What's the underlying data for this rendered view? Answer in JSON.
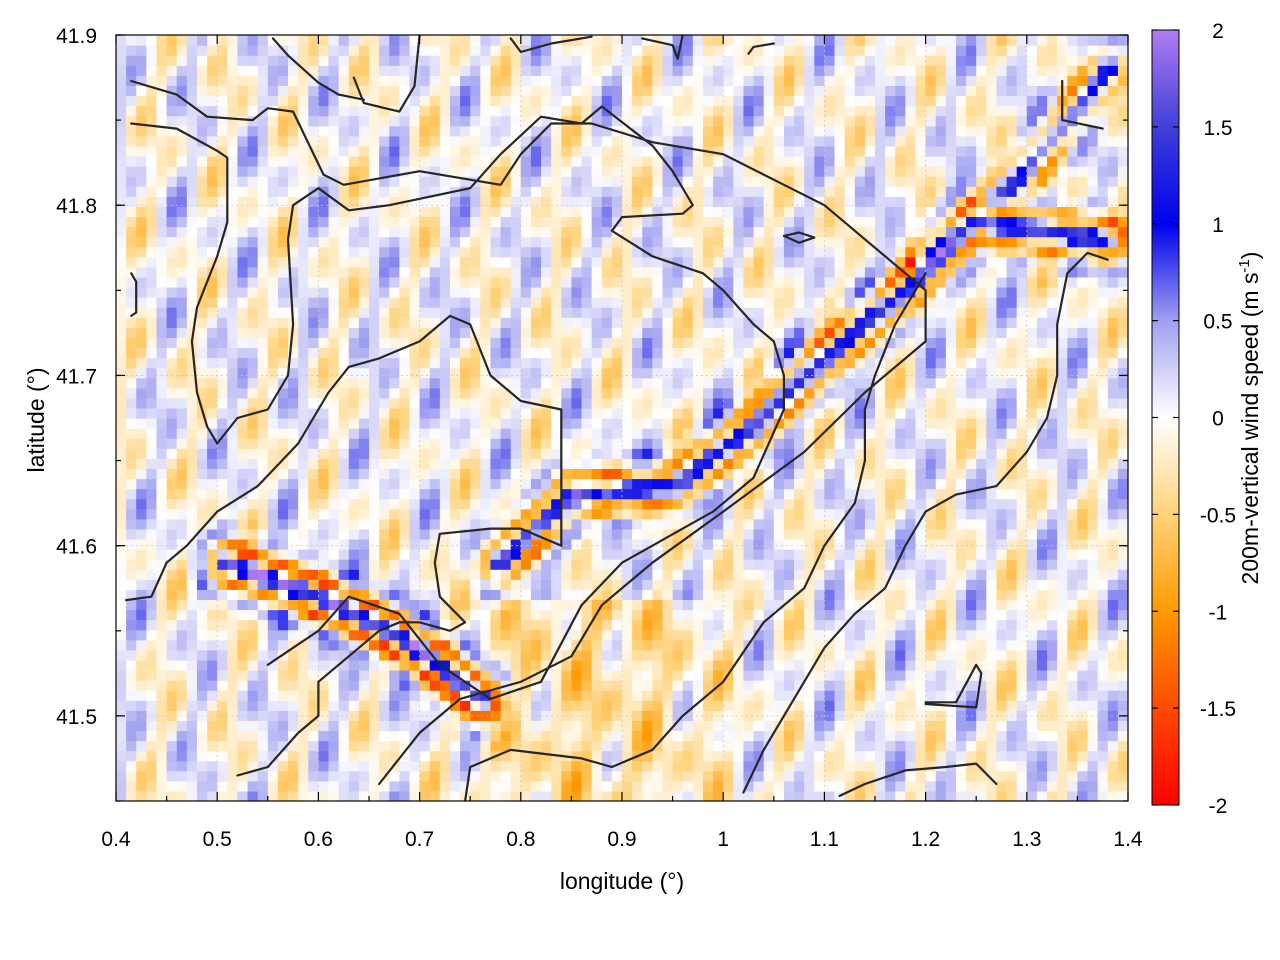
{
  "chart_data": {
    "type": "heatmap",
    "xlabel": "longitude (°)",
    "ylabel": "latitude (°)",
    "colorbar_label": "200m-vertical wind speed (m s-1)",
    "xlim": [
      0.4,
      1.4
    ],
    "ylim": [
      41.45,
      41.9
    ],
    "x_ticks": [
      "0.4",
      "0.5",
      "0.6",
      "0.7",
      "0.8",
      "0.9",
      "1",
      "1.1",
      "1.2",
      "1.3",
      "1.4"
    ],
    "y_ticks": [
      "41.5",
      "41.6",
      "41.7",
      "41.8",
      "41.9"
    ],
    "y_tick_values": [
      41.5,
      41.6,
      41.7,
      41.8,
      41.9
    ],
    "colorbar_ticks": [
      "-2",
      "-1.5",
      "-1",
      "-0.5",
      "0",
      "0.5",
      "1",
      "1.5",
      "2"
    ],
    "colorbar_tick_values": [
      -2,
      -1.5,
      -1,
      -0.5,
      0,
      0.5,
      1,
      1.5,
      2
    ],
    "colorbar_range": [
      -2,
      2
    ],
    "grid": true,
    "colormap": [
      {
        "value": -2.0,
        "color": "#ff0000"
      },
      {
        "value": -1.5,
        "color": "#ff4a00"
      },
      {
        "value": -1.0,
        "color": "#ff9a00"
      },
      {
        "value": -0.5,
        "color": "#ffd27a"
      },
      {
        "value": 0.0,
        "color": "#ffffff"
      },
      {
        "value": 0.5,
        "color": "#9f9ff0"
      },
      {
        "value": 1.0,
        "color": "#0000ee"
      },
      {
        "value": 1.5,
        "color": "#4040d8"
      },
      {
        "value": 2.0,
        "color": "#b07cf2"
      }
    ],
    "wave_bands": [
      {
        "name": "lower-left band",
        "points": [
          [
            0.51,
            41.59
          ],
          [
            0.6,
            41.57
          ],
          [
            0.67,
            41.55
          ],
          [
            0.72,
            41.53
          ],
          [
            0.76,
            41.51
          ]
        ],
        "amplitude": 1.9
      },
      {
        "name": "central band",
        "points": [
          [
            0.78,
            41.59
          ],
          [
            0.85,
            41.63
          ],
          [
            0.95,
            41.635
          ],
          [
            1.03,
            41.67
          ],
          [
            1.1,
            41.71
          ],
          [
            1.18,
            41.75
          ],
          [
            1.25,
            41.79
          ],
          [
            1.38,
            41.78
          ]
        ],
        "amplitude": 1.4
      },
      {
        "name": "upper-right band",
        "points": [
          [
            1.2,
            41.77
          ],
          [
            1.3,
            41.82
          ],
          [
            1.38,
            41.88
          ]
        ],
        "amplitude": 0.9
      }
    ],
    "contours": [
      [
        [
          0.415,
          41.873
        ],
        [
          0.46,
          41.865
        ],
        [
          0.49,
          41.852
        ],
        [
          0.535,
          41.85
        ],
        [
          0.55,
          41.857
        ],
        [
          0.575,
          41.855
        ],
        [
          0.605,
          41.818
        ],
        [
          0.625,
          41.812
        ],
        [
          0.7,
          41.82
        ],
        [
          0.78,
          41.812
        ],
        [
          0.8,
          41.83
        ],
        [
          0.83,
          41.848
        ],
        [
          0.87,
          41.848
        ],
        [
          0.93,
          41.837
        ],
        [
          1.0,
          41.83
        ],
        [
          1.06,
          41.812
        ],
        [
          1.1,
          41.8
        ],
        [
          1.14,
          41.78
        ],
        [
          1.18,
          41.76
        ],
        [
          1.2,
          41.75
        ],
        [
          1.2,
          41.72
        ],
        [
          1.14,
          41.69
        ],
        [
          1.08,
          41.655
        ],
        [
          1.0,
          41.62
        ],
        [
          0.93,
          41.59
        ],
        [
          0.88,
          41.565
        ],
        [
          0.85,
          41.535
        ],
        [
          0.8,
          41.52
        ],
        [
          0.74,
          41.51
        ],
        [
          0.7,
          41.49
        ],
        [
          0.66,
          41.46
        ]
      ],
      [
        [
          0.415,
          41.848
        ],
        [
          0.46,
          41.845
        ],
        [
          0.5,
          41.832
        ],
        [
          0.51,
          41.828
        ],
        [
          0.51,
          41.79
        ],
        [
          0.5,
          41.77
        ],
        [
          0.48,
          41.74
        ],
        [
          0.475,
          41.72
        ],
        [
          0.48,
          41.69
        ],
        [
          0.49,
          41.67
        ],
        [
          0.5,
          41.66
        ],
        [
          0.52,
          41.675
        ],
        [
          0.55,
          41.68
        ],
        [
          0.57,
          41.7
        ],
        [
          0.575,
          41.73
        ],
        [
          0.57,
          41.78
        ],
        [
          0.575,
          41.8
        ],
        [
          0.6,
          41.81
        ],
        [
          0.63,
          41.797
        ],
        [
          0.67,
          41.8
        ],
        [
          0.75,
          41.81
        ],
        [
          0.78,
          41.83
        ],
        [
          0.82,
          41.852
        ],
        [
          0.86,
          41.848
        ],
        [
          0.88,
          41.858
        ],
        [
          0.93,
          41.835
        ],
        [
          0.95,
          41.82
        ],
        [
          0.97,
          41.8
        ],
        [
          0.96,
          41.795
        ],
        [
          0.9,
          41.793
        ],
        [
          0.89,
          41.785
        ],
        [
          0.93,
          41.77
        ],
        [
          0.98,
          41.76
        ],
        [
          1.0,
          41.75
        ],
        [
          1.03,
          41.73
        ],
        [
          1.05,
          41.72
        ],
        [
          1.06,
          41.7
        ],
        [
          1.06,
          41.68
        ],
        [
          1.03,
          41.64
        ],
        [
          0.99,
          41.62
        ],
        [
          0.96,
          41.61
        ],
        [
          0.93,
          41.6
        ],
        [
          0.9,
          41.59
        ],
        [
          0.86,
          41.565
        ],
        [
          0.82,
          41.52
        ],
        [
          0.77,
          41.51
        ],
        [
          0.72,
          41.53
        ],
        [
          0.68,
          41.56
        ],
        [
          0.63,
          41.57
        ],
        [
          0.6,
          41.55
        ],
        [
          0.55,
          41.53
        ]
      ],
      [
        [
          0.41,
          41.568
        ],
        [
          0.435,
          41.57
        ],
        [
          0.45,
          41.59
        ],
        [
          0.47,
          41.6
        ],
        [
          0.5,
          41.62
        ],
        [
          0.54,
          41.635
        ],
        [
          0.58,
          41.66
        ],
        [
          0.61,
          41.69
        ],
        [
          0.63,
          41.705
        ],
        [
          0.66,
          41.71
        ],
        [
          0.7,
          41.72
        ],
        [
          0.73,
          41.735
        ],
        [
          0.75,
          41.73
        ],
        [
          0.77,
          41.7
        ],
        [
          0.8,
          41.685
        ],
        [
          0.84,
          41.68
        ],
        [
          0.84,
          41.62
        ],
        [
          0.84,
          41.6
        ],
        [
          0.8,
          41.61
        ],
        [
          0.77,
          41.61
        ],
        [
          0.72,
          41.607
        ],
        [
          0.715,
          41.59
        ],
        [
          0.72,
          41.57
        ],
        [
          0.745,
          41.555
        ],
        [
          0.73,
          41.55
        ],
        [
          0.7,
          41.555
        ],
        [
          0.68,
          41.555
        ],
        [
          0.66,
          41.55
        ],
        [
          0.63,
          41.535
        ],
        [
          0.6,
          41.52
        ],
        [
          0.6,
          41.5
        ],
        [
          0.58,
          41.49
        ],
        [
          0.55,
          41.47
        ],
        [
          0.52,
          41.465
        ]
      ],
      [
        [
          0.745,
          41.45
        ],
        [
          0.75,
          41.47
        ],
        [
          0.79,
          41.48
        ],
        [
          0.86,
          41.475
        ],
        [
          0.89,
          41.47
        ],
        [
          0.93,
          41.48
        ],
        [
          0.96,
          41.5
        ],
        [
          1.0,
          41.52
        ],
        [
          1.04,
          41.555
        ],
        [
          1.08,
          41.575
        ],
        [
          1.1,
          41.6
        ],
        [
          1.13,
          41.625
        ],
        [
          1.14,
          41.65
        ],
        [
          1.14,
          41.68
        ],
        [
          1.15,
          41.7
        ],
        [
          1.17,
          41.73
        ],
        [
          1.2,
          41.76
        ]
      ],
      [
        [
          1.02,
          41.455
        ],
        [
          1.04,
          41.48
        ],
        [
          1.06,
          41.5
        ],
        [
          1.08,
          41.52
        ],
        [
          1.1,
          41.54
        ],
        [
          1.13,
          41.56
        ],
        [
          1.16,
          41.575
        ],
        [
          1.18,
          41.6
        ],
        [
          1.2,
          41.62
        ],
        [
          1.23,
          41.63
        ],
        [
          1.27,
          41.635
        ],
        [
          1.3,
          41.655
        ],
        [
          1.32,
          41.675
        ],
        [
          1.33,
          41.7
        ],
        [
          1.33,
          41.73
        ],
        [
          1.34,
          41.76
        ],
        [
          1.36,
          41.772
        ],
        [
          1.38,
          41.768
        ]
      ],
      [
        [
          1.115,
          41.453
        ],
        [
          1.14,
          41.46
        ],
        [
          1.18,
          41.468
        ],
        [
          1.22,
          41.47
        ],
        [
          1.25,
          41.472
        ],
        [
          1.27,
          41.46
        ]
      ],
      [
        [
          1.2,
          41.507
        ],
        [
          1.25,
          41.505
        ],
        [
          1.255,
          41.525
        ],
        [
          1.25,
          41.53
        ],
        [
          1.23,
          41.508
        ],
        [
          1.2,
          41.508
        ]
      ],
      [
        [
          0.635,
          41.875
        ],
        [
          0.645,
          41.86
        ],
        [
          0.68,
          41.855
        ],
        [
          0.695,
          41.87
        ],
        [
          0.7,
          41.9
        ]
      ],
      [
        [
          0.555,
          41.898
        ],
        [
          0.57,
          41.888
        ],
        [
          0.6,
          41.872
        ],
        [
          0.62,
          41.865
        ],
        [
          0.645,
          41.862
        ]
      ],
      [
        [
          0.79,
          41.898
        ],
        [
          0.8,
          41.89
        ],
        [
          0.83,
          41.895
        ],
        [
          0.87,
          41.899
        ]
      ],
      [
        [
          0.92,
          41.898
        ],
        [
          0.95,
          41.894
        ],
        [
          0.955,
          41.886
        ],
        [
          0.96,
          41.9
        ]
      ],
      [
        [
          1.025,
          41.889
        ],
        [
          1.03,
          41.893
        ],
        [
          1.05,
          41.895
        ]
      ],
      [
        [
          1.335,
          41.873
        ],
        [
          1.335,
          41.85
        ],
        [
          1.375,
          41.845
        ]
      ],
      [
        [
          0.415,
          41.735
        ],
        [
          0.42,
          41.737
        ],
        [
          0.42,
          41.755
        ],
        [
          0.415,
          41.76
        ]
      ],
      [
        [
          1.06,
          41.782
        ],
        [
          1.075,
          41.784
        ],
        [
          1.09,
          41.781
        ],
        [
          1.075,
          41.778
        ],
        [
          1.06,
          41.782
        ]
      ]
    ]
  }
}
